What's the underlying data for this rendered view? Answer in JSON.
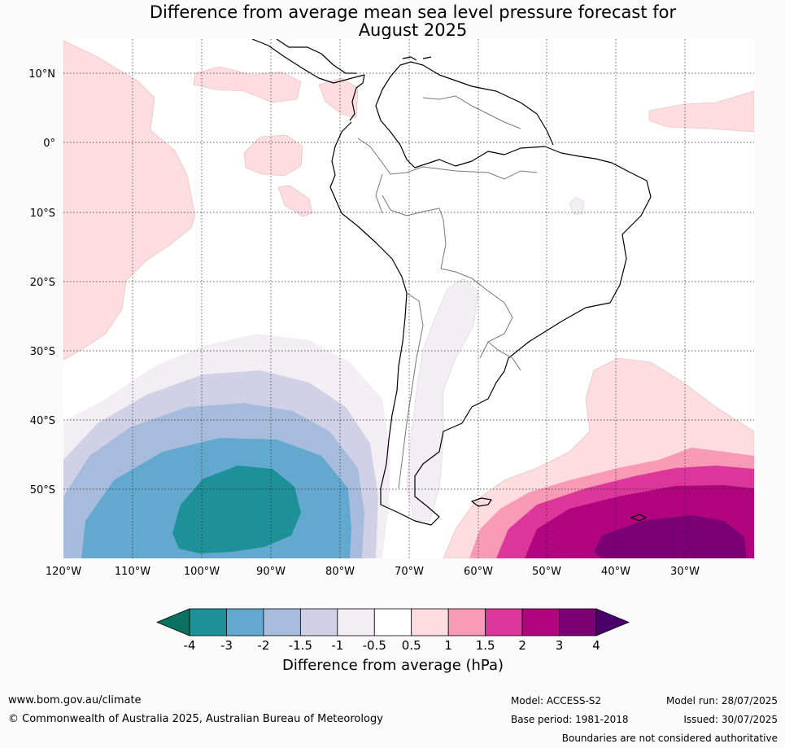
{
  "title_line1": "Difference from average mean sea level pressure forecast for",
  "title_line2": "August 2025",
  "map": {
    "lat_labels": [
      "10°N",
      "0°",
      "10°S",
      "20°S",
      "30°S",
      "40°S",
      "50°S"
    ],
    "lon_labels": [
      "120°W",
      "110°W",
      "100°W",
      "90°W",
      "80°W",
      "70°W",
      "60°W",
      "50°W",
      "40°W",
      "30°W"
    ]
  },
  "colorbar": {
    "tick_labels": [
      "-4",
      "-3",
      "-2",
      "-1.5",
      "-1",
      "-0.5",
      "0.5",
      "1",
      "1.5",
      "2",
      "3",
      "4"
    ],
    "colors": [
      "#0b7160",
      "#1e9198",
      "#63a9cf",
      "#a7bbdc",
      "#d0d1e6",
      "#f2eef3",
      "#ffffff",
      "#fddddf",
      "#f89ab6",
      "#dd369a",
      "#b0057e",
      "#7b0073",
      "#4a0068"
    ],
    "label": "Difference from average (hPa)"
  },
  "footer": {
    "website": "www.bom.gov.au/climate",
    "copyright": "© Commonwealth of Australia 2025, Australian Bureau of Meteorology",
    "model": "Model: ACCESS-S2",
    "base_period": "Base period: 1981-2018",
    "model_run": "Model run: 28/07/2025",
    "issued": "Issued: 30/07/2025",
    "disclaimer": "Boundaries are not considered authoritative"
  }
}
